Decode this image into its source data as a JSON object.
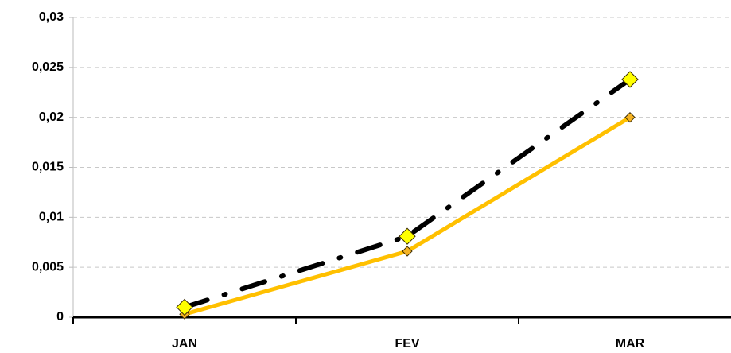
{
  "chart_data": {
    "type": "line",
    "categories": [
      "JAN",
      "FEV",
      "MAR"
    ],
    "series": [
      {
        "color": "#ffc000",
        "marker_color": "#f5b324",
        "dash": false,
        "values": [
          0.0003,
          0.0066,
          0.02
        ]
      },
      {
        "color": "#000000",
        "marker_color": "#ffff00",
        "dash": true,
        "values": [
          0.001,
          0.0081,
          0.0238
        ]
      }
    ],
    "ylim": [
      0,
      0.03
    ],
    "yticks": [
      0,
      {
        "value": 0.005,
        "label": "0,005"
      },
      {
        "value": 0.01,
        "label": "0,01"
      },
      {
        "value": 0.015,
        "label": "0,015"
      },
      {
        "value": 0.02,
        "label": "0,02"
      },
      {
        "value": 0.025,
        "label": "0,025"
      },
      {
        "value": 0.03,
        "label": "0,03"
      }
    ],
    "grid": true
  }
}
